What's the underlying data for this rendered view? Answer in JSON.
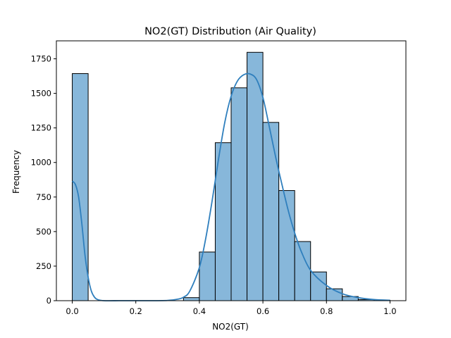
{
  "chart_data": {
    "type": "bar",
    "title": "NO2(GT) Distribution (Air Quality)",
    "xlabel": "NO2(GT)",
    "ylabel": "Frequency",
    "xlim": [
      -0.05,
      1.05
    ],
    "ylim": [
      0,
      1880
    ],
    "bin_width": 0.05,
    "bins": [
      {
        "x": 0.0,
        "count": 1643
      },
      {
        "x": 0.35,
        "count": 22
      },
      {
        "x": 0.4,
        "count": 352
      },
      {
        "x": 0.45,
        "count": 1143
      },
      {
        "x": 0.5,
        "count": 1540
      },
      {
        "x": 0.55,
        "count": 1797
      },
      {
        "x": 0.6,
        "count": 1290
      },
      {
        "x": 0.65,
        "count": 797
      },
      {
        "x": 0.7,
        "count": 428
      },
      {
        "x": 0.75,
        "count": 208
      },
      {
        "x": 0.8,
        "count": 86
      },
      {
        "x": 0.85,
        "count": 30
      },
      {
        "x": 0.9,
        "count": 8
      },
      {
        "x": 0.95,
        "count": 3
      }
    ],
    "kde": {
      "x": [
        0.0,
        0.01,
        0.02,
        0.03,
        0.04,
        0.05,
        0.06,
        0.07,
        0.08,
        0.1,
        0.15,
        0.2,
        0.25,
        0.3,
        0.33,
        0.35,
        0.37,
        0.4,
        0.42,
        0.44,
        0.46,
        0.48,
        0.5,
        0.52,
        0.54,
        0.56,
        0.58,
        0.6,
        0.62,
        0.64,
        0.66,
        0.68,
        0.7,
        0.72,
        0.75,
        0.8,
        0.85,
        0.9,
        0.95,
        1.0
      ],
      "y": [
        865,
        840,
        750,
        560,
        330,
        170,
        70,
        25,
        8,
        0,
        0,
        0,
        0,
        2,
        10,
        25,
        70,
        240,
        450,
        720,
        1020,
        1290,
        1480,
        1590,
        1635,
        1640,
        1600,
        1470,
        1260,
        1040,
        840,
        650,
        490,
        360,
        220,
        110,
        50,
        22,
        8,
        3
      ]
    },
    "xticks": [
      {
        "value": 0.0,
        "label": "0.0"
      },
      {
        "value": 0.2,
        "label": "0.2"
      },
      {
        "value": 0.4,
        "label": "0.4"
      },
      {
        "value": 0.6,
        "label": "0.6"
      },
      {
        "value": 0.8,
        "label": "0.8"
      },
      {
        "value": 1.0,
        "label": "1.0"
      }
    ],
    "yticks": [
      {
        "value": 0,
        "label": "0"
      },
      {
        "value": 250,
        "label": "250"
      },
      {
        "value": 500,
        "label": "500"
      },
      {
        "value": 750,
        "label": "750"
      },
      {
        "value": 1000,
        "label": "1000"
      },
      {
        "value": 1250,
        "label": "1250"
      },
      {
        "value": 1500,
        "label": "1500"
      },
      {
        "value": 1750,
        "label": "1750"
      }
    ],
    "grid": false,
    "colors": {
      "bar_fill": "#87b7da",
      "bar_edge": "#000000",
      "kde_line": "#2f7fbd"
    }
  }
}
